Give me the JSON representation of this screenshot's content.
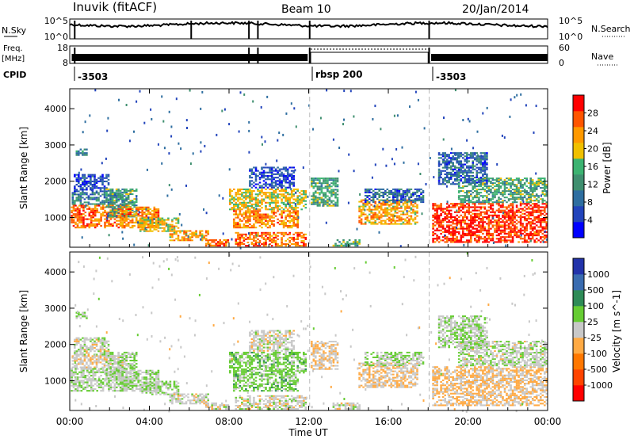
{
  "header": {
    "station": "Inuvik (fitACF)",
    "beam": "Beam 10",
    "date": "20/Jan/2014"
  },
  "panels": {
    "nsky_label": "N.Sky",
    "nsky_ticks": [
      "10^5",
      "10^0"
    ],
    "nsearch_label": "N.Search",
    "nsearch_ticks": [
      "10^5",
      "10^0"
    ],
    "freq_label": "Freq.",
    "freq_unit": "[MHz]",
    "freq_ticks": [
      "18",
      "8"
    ],
    "nave_label": "Nave",
    "nave_ticks": [
      "60",
      "0"
    ],
    "cpid_label": "CPID",
    "cpid_segments": [
      "-3503",
      "rbsp 200",
      "-3503"
    ]
  },
  "colors": {
    "power": [
      "#0000ff",
      "#2244bb",
      "#2e6ea0",
      "#3f8f6f",
      "#3cb371",
      "#f0c000",
      "#ff9900",
      "#ff5500",
      "#ff0000"
    ],
    "velocity": [
      "#ff0000",
      "#ff4400",
      "#ff7700",
      "#ffaa44",
      "#c8c8c8",
      "#66cc33",
      "#2e8b57",
      "#3a6cb0",
      "#2233aa"
    ],
    "groundscatter": "#c0c0c0"
  },
  "chart_data": [
    {
      "type": "heatmap",
      "name": "power",
      "ylabel": "Slant Range [km]",
      "yticks": [
        1000,
        2000,
        3000,
        4000
      ],
      "ylim": [
        180,
        4550
      ],
      "colorbar_label": "Power [dB]",
      "colorbar_ticks": [
        "4",
        "8",
        "12",
        "16",
        "20",
        "24",
        "28"
      ],
      "clim": [
        0,
        32
      ],
      "regions": [
        {
          "t0": 0.05,
          "t1": 2.9,
          "r0": 700,
          "r1": 1350,
          "level": 26
        },
        {
          "t0": 0.1,
          "t1": 2.9,
          "r0": 1350,
          "r1": 1700,
          "level": 10
        },
        {
          "t0": 0.2,
          "t1": 2.0,
          "r0": 1700,
          "r1": 2200,
          "level": 6
        },
        {
          "t0": 0.3,
          "t1": 0.9,
          "r0": 2700,
          "r1": 2900,
          "level": 12
        },
        {
          "t0": 1.8,
          "t1": 3.4,
          "r0": 1000,
          "r1": 1800,
          "level": 14
        },
        {
          "t0": 2.5,
          "t1": 4.5,
          "r0": 700,
          "r1": 1300,
          "level": 24
        },
        {
          "t0": 3.5,
          "t1": 5.5,
          "r0": 600,
          "r1": 1000,
          "level": 20
        },
        {
          "t0": 5.0,
          "t1": 7.0,
          "r0": 350,
          "r1": 650,
          "level": 22
        },
        {
          "t0": 6.8,
          "t1": 8.0,
          "r0": 200,
          "r1": 400,
          "level": 26
        },
        {
          "t0": 8.0,
          "t1": 11.9,
          "r0": 1200,
          "r1": 1800,
          "level": 20
        },
        {
          "t0": 8.2,
          "t1": 11.5,
          "r0": 700,
          "r1": 1200,
          "level": 24
        },
        {
          "t0": 8.3,
          "t1": 11.9,
          "r0": 200,
          "r1": 600,
          "level": 26
        },
        {
          "t0": 9.0,
          "t1": 11.3,
          "r0": 1800,
          "r1": 2400,
          "level": 6
        },
        {
          "t0": 12.1,
          "t1": 13.5,
          "r0": 1300,
          "r1": 2100,
          "level": 14
        },
        {
          "t0": 13.2,
          "t1": 14.6,
          "r0": 200,
          "r1": 400,
          "level": 14
        },
        {
          "t0": 14.5,
          "t1": 17.5,
          "r0": 800,
          "r1": 1500,
          "level": 22
        },
        {
          "t0": 14.8,
          "t1": 17.8,
          "r0": 1400,
          "r1": 1800,
          "level": 8
        },
        {
          "t0": 18.2,
          "t1": 24.0,
          "r0": 300,
          "r1": 1400,
          "level": 29
        },
        {
          "t0": 19.5,
          "t1": 24.0,
          "r0": 1400,
          "r1": 2100,
          "level": 14
        },
        {
          "t0": 18.5,
          "t1": 21.0,
          "r0": 1900,
          "r1": 2800,
          "level": 8
        }
      ]
    },
    {
      "type": "heatmap",
      "name": "velocity",
      "ylabel": "Slant Range [km]",
      "yticks": [
        1000,
        2000,
        3000,
        4000
      ],
      "ylim": [
        180,
        4550
      ],
      "colorbar_label": "Velocity [m s^-1]",
      "colorbar_ticks": [
        "-1000",
        "-500",
        "-100",
        "-25",
        "25",
        "100",
        "500",
        "1000"
      ],
      "clim": [
        -1500,
        1500
      ],
      "regions": [
        {
          "t0": 0.05,
          "t1": 2.9,
          "r0": 700,
          "r1": 1350,
          "level": 90
        },
        {
          "t0": 0.1,
          "t1": 2.9,
          "r0": 1350,
          "r1": 1700,
          "level": -90
        },
        {
          "t0": 0.2,
          "t1": 2.0,
          "r0": 1700,
          "r1": 2200,
          "level": 20
        },
        {
          "t0": 0.3,
          "t1": 0.9,
          "r0": 2700,
          "r1": 2900,
          "level": 150
        },
        {
          "t0": 1.8,
          "t1": 3.4,
          "r0": 1000,
          "r1": 1800,
          "level": 150
        },
        {
          "t0": 2.5,
          "t1": 4.5,
          "r0": 700,
          "r1": 1300,
          "level": 150
        },
        {
          "t0": 3.5,
          "t1": 5.5,
          "r0": 600,
          "r1": 1000,
          "level": 120
        },
        {
          "t0": 5.0,
          "t1": 7.0,
          "r0": 350,
          "r1": 650,
          "level": 0
        },
        {
          "t0": 6.8,
          "t1": 8.0,
          "r0": 200,
          "r1": 400,
          "level": 0
        },
        {
          "t0": 8.0,
          "t1": 11.9,
          "r0": 1200,
          "r1": 1800,
          "level": 300
        },
        {
          "t0": 8.2,
          "t1": 11.5,
          "r0": 700,
          "r1": 1200,
          "level": 300
        },
        {
          "t0": 8.3,
          "t1": 11.9,
          "r0": 200,
          "r1": 600,
          "level": 0
        },
        {
          "t0": 9.0,
          "t1": 11.3,
          "r0": 1800,
          "r1": 2400,
          "level": 0
        },
        {
          "t0": 12.1,
          "t1": 13.5,
          "r0": 1300,
          "r1": 2100,
          "level": -150
        },
        {
          "t0": 13.2,
          "t1": 14.6,
          "r0": 200,
          "r1": 400,
          "level": 0
        },
        {
          "t0": 14.5,
          "t1": 17.5,
          "r0": 800,
          "r1": 1500,
          "level": -150
        },
        {
          "t0": 14.8,
          "t1": 17.8,
          "r0": 1400,
          "r1": 1800,
          "level": 150
        },
        {
          "t0": 18.2,
          "t1": 24.0,
          "r0": 300,
          "r1": 1400,
          "level": -200
        },
        {
          "t0": 19.5,
          "t1": 24.0,
          "r0": 1400,
          "r1": 2100,
          "level": 60
        },
        {
          "t0": 18.5,
          "t1": 21.0,
          "r0": 1900,
          "r1": 2800,
          "level": 150
        }
      ]
    }
  ],
  "xaxis": {
    "label": "Time UT",
    "ticks": [
      "00:00",
      "04:00",
      "08:00",
      "12:00",
      "16:00",
      "20:00",
      "00:00"
    ],
    "xlim_hours": [
      0,
      24
    ],
    "mode_change_hours": [
      12.05,
      18.05
    ]
  }
}
